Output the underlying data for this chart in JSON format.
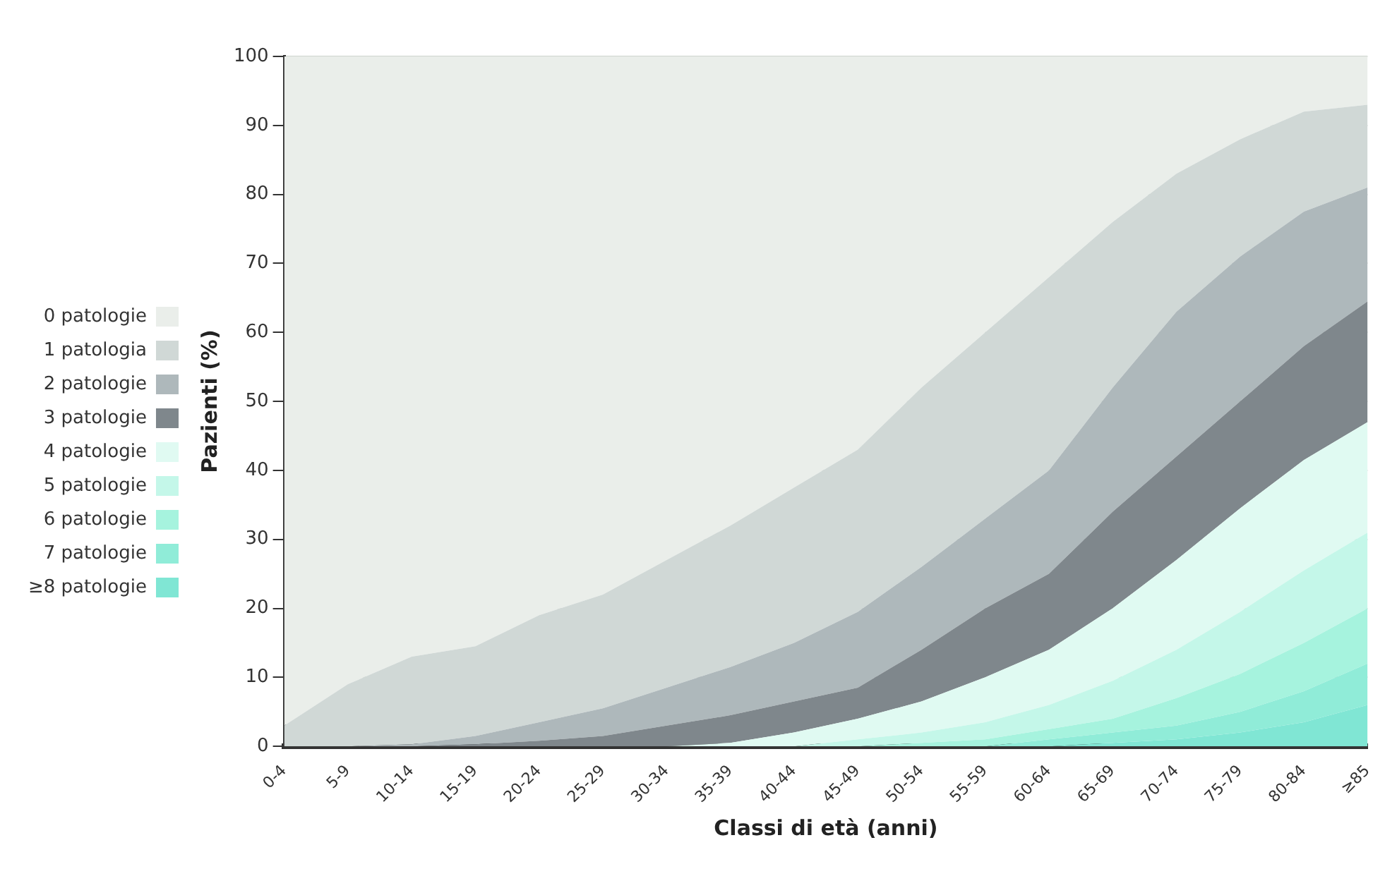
{
  "chart_data": {
    "type": "area",
    "stacked": true,
    "xlabel": "Classi di età (anni)",
    "ylabel": "Pazienti (%)",
    "categories": [
      "0-4",
      "5-9",
      "10-14",
      "15-19",
      "20-24",
      "25-29",
      "30-34",
      "35-39",
      "40-44",
      "45-49",
      "50-54",
      "55-59",
      "60-64",
      "65-69",
      "70-74",
      "75-79",
      "80-84",
      "≥85"
    ],
    "ylim": [
      0,
      100
    ],
    "yticks": [
      0,
      10,
      20,
      30,
      40,
      50,
      60,
      70,
      80,
      90,
      100
    ],
    "grid": "y",
    "legend": "left",
    "marker": "none",
    "series": [
      {
        "name": "≥8 patologie",
        "color": "#80e6d4",
        "values": [
          0,
          0,
          0,
          0,
          0,
          0,
          0,
          0,
          0,
          0,
          0,
          0,
          0,
          0.5,
          1,
          2,
          3.5,
          6
        ]
      },
      {
        "name": "7 patologie",
        "color": "#90ecd8",
        "values": [
          0,
          0,
          0,
          0,
          0,
          0,
          0,
          0,
          0,
          0,
          0,
          0,
          1,
          1.5,
          2,
          3,
          4.5,
          6
        ]
      },
      {
        "name": "6 patologie",
        "color": "#a6f3de",
        "values": [
          0,
          0,
          0,
          0,
          0,
          0,
          0,
          0,
          0,
          0,
          0.5,
          1,
          1.5,
          2,
          4,
          5.5,
          7,
          8
        ]
      },
      {
        "name": "5 patologie",
        "color": "#c4f7e9",
        "values": [
          0,
          0,
          0,
          0,
          0,
          0,
          0,
          0,
          0,
          1,
          1.5,
          2.5,
          3.5,
          5.5,
          7,
          9,
          10.5,
          11
        ]
      },
      {
        "name": "4 patologie",
        "color": "#e0faf2",
        "values": [
          0,
          0,
          0,
          0,
          0,
          0,
          0,
          0.5,
          2,
          3,
          4.5,
          6.5,
          8,
          10.5,
          13,
          15,
          16,
          16
        ]
      },
      {
        "name": "3 patologie",
        "color": "#7f878c",
        "values": [
          0,
          0,
          0,
          0.3,
          0.8,
          1.5,
          3,
          4,
          4.5,
          4.5,
          7.5,
          10,
          11,
          14,
          15,
          15.5,
          16.5,
          17.5
        ]
      },
      {
        "name": "2 patologie",
        "color": "#aeb8bb",
        "values": [
          0,
          0,
          0.3,
          1.2,
          2.7,
          4,
          5.5,
          7,
          8.5,
          11,
          12,
          13,
          15,
          18,
          21,
          21,
          19.5,
          16.5
        ]
      },
      {
        "name": "1 patologia",
        "color": "#d0d8d6",
        "values": [
          3,
          9,
          12.7,
          13,
          15.5,
          16.5,
          18.5,
          20.5,
          22.5,
          23.5,
          26,
          27,
          28,
          24,
          20,
          17,
          14.5,
          12
        ]
      },
      {
        "name": "0 patologie",
        "color": "#eaeeea",
        "values": [
          97,
          91,
          87,
          85.5,
          81,
          78,
          73,
          68,
          62.5,
          57,
          48,
          40,
          32,
          24,
          17,
          12,
          8,
          7
        ]
      }
    ]
  }
}
